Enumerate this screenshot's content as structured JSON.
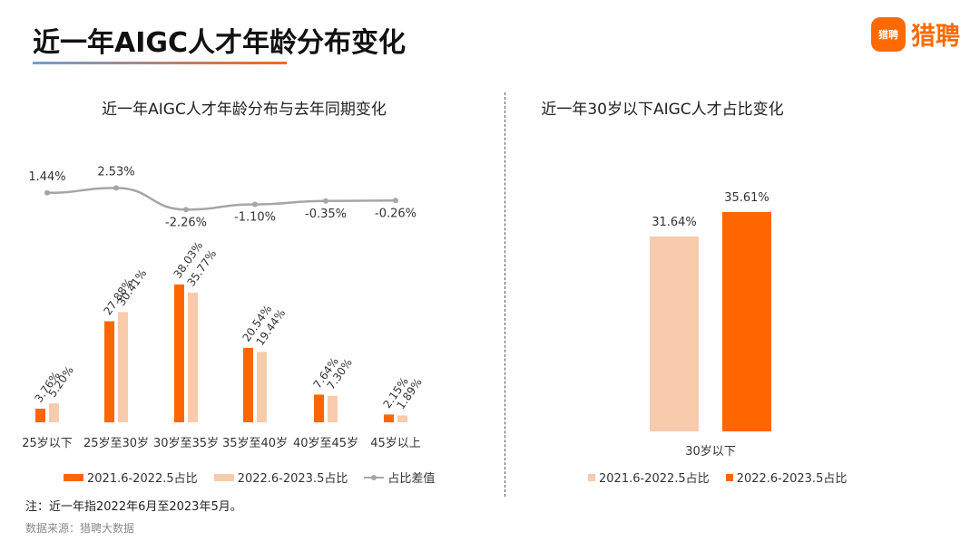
{
  "header": {
    "title": "近一年AIGC人才年龄分布变化"
  },
  "logo": {
    "badge": "猎聘",
    "text": "猎聘"
  },
  "colors": {
    "orange": "#FF6600",
    "peach": "#F8CBAD",
    "gray": "#A6A6A6"
  },
  "chart_data": [
    {
      "type": "bar",
      "title": "近一年AIGC人才年龄分布与去年同期变化",
      "categories": [
        "25岁以下",
        "25岁至30岁",
        "30岁至35岁",
        "35岁至40岁",
        "40岁至45岁",
        "45岁以上"
      ],
      "series": [
        {
          "name": "2021.6-2022.5占比",
          "type": "bar",
          "color": "#FF6600",
          "values": [
            3.76,
            27.88,
            38.03,
            20.54,
            7.64,
            2.15
          ],
          "labels": [
            "3.76%",
            "27.88%",
            "38.03%",
            "20.54%",
            "7.64%",
            "2.15%"
          ]
        },
        {
          "name": "2022.6-2023.5占比",
          "type": "bar",
          "color": "#F8CBAD",
          "values": [
            5.2,
            30.41,
            35.77,
            19.44,
            7.3,
            1.89
          ],
          "labels": [
            "5.20%",
            "30.41%",
            "35.77%",
            "19.44%",
            "7.30%",
            "1.89%"
          ]
        },
        {
          "name": "占比差值",
          "type": "line",
          "color": "#A6A6A6",
          "values": [
            1.44,
            2.53,
            -2.26,
            -1.1,
            -0.35,
            -0.26
          ],
          "labels": [
            "1.44%",
            "2.53%",
            "-2.26%",
            "-1.10%",
            "-0.35%",
            "-0.26%"
          ]
        }
      ],
      "ylim": [
        0,
        40
      ],
      "legend_position": "bottom",
      "grid": false
    },
    {
      "type": "bar",
      "title": "近一年30岁以下AIGC人才占比变化",
      "categories": [
        "30岁以下"
      ],
      "series": [
        {
          "name": "2021.6-2022.5占比",
          "color": "#F8CBAD",
          "values": [
            31.64
          ],
          "labels": [
            "31.64%"
          ]
        },
        {
          "name": "2022.6-2023.5占比",
          "color": "#FF6600",
          "values": [
            35.61
          ],
          "labels": [
            "35.61%"
          ]
        }
      ],
      "legend_position": "bottom",
      "grid": false
    }
  ],
  "note": "注：近一年指2022年6月至2023年5月。",
  "source": "数据来源：猎聘大数据"
}
